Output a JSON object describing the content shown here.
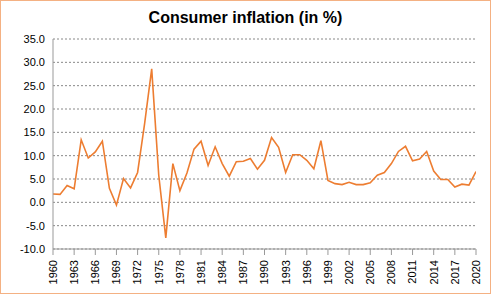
{
  "chart_data": {
    "type": "line",
    "title": "Consumer inflation (in %)",
    "x": [
      1960,
      1961,
      1962,
      1963,
      1964,
      1965,
      1966,
      1967,
      1968,
      1969,
      1970,
      1971,
      1972,
      1973,
      1974,
      1975,
      1976,
      1977,
      1978,
      1979,
      1980,
      1981,
      1982,
      1983,
      1984,
      1985,
      1986,
      1987,
      1988,
      1989,
      1990,
      1991,
      1992,
      1993,
      1994,
      1995,
      1996,
      1997,
      1998,
      1999,
      2000,
      2001,
      2002,
      2003,
      2004,
      2005,
      2006,
      2007,
      2008,
      2009,
      2010,
      2011,
      2012,
      2013,
      2014,
      2015,
      2016,
      2017,
      2018,
      2019,
      2020
    ],
    "values": [
      1.8,
      1.7,
      3.6,
      2.9,
      13.4,
      9.5,
      10.8,
      13.1,
      3.0,
      -0.6,
      5.1,
      3.1,
      6.4,
      16.9,
      28.6,
      5.8,
      -7.6,
      8.3,
      2.5,
      6.3,
      11.4,
      13.1,
      7.9,
      11.9,
      8.3,
      5.6,
      8.7,
      8.8,
      9.4,
      7.1,
      9.0,
      13.9,
      11.8,
      6.4,
      10.2,
      10.2,
      9.0,
      7.2,
      13.2,
      4.7,
      4.0,
      3.8,
      4.3,
      3.8,
      3.8,
      4.2,
      5.8,
      6.4,
      8.3,
      10.9,
      12.0,
      8.9,
      9.3,
      10.9,
      6.7,
      4.9,
      4.9,
      3.3,
      3.9,
      3.7,
      6.6
    ],
    "color": "#ed7d31",
    "xlim": [
      1960,
      2020
    ],
    "xticks": [
      1960,
      1963,
      1966,
      1969,
      1972,
      1975,
      1978,
      1981,
      1984,
      1987,
      1990,
      1993,
      1996,
      1999,
      2002,
      2005,
      2008,
      2011,
      2014,
      2017,
      2020
    ],
    "ylim": [
      -10,
      35
    ],
    "yticks": [
      {
        "value": -10,
        "label": "-10.0"
      },
      {
        "value": -5,
        "label": "-5.0"
      },
      {
        "value": 0,
        "label": "0.0"
      },
      {
        "value": 5,
        "label": "5.0"
      },
      {
        "value": 10,
        "label": "10.0"
      },
      {
        "value": 15,
        "label": "15.0"
      },
      {
        "value": 20,
        "label": "20.0"
      },
      {
        "value": 25,
        "label": "25.0"
      },
      {
        "value": 30,
        "label": "30.0"
      },
      {
        "value": 35,
        "label": "35.0"
      }
    ],
    "grid": true
  }
}
